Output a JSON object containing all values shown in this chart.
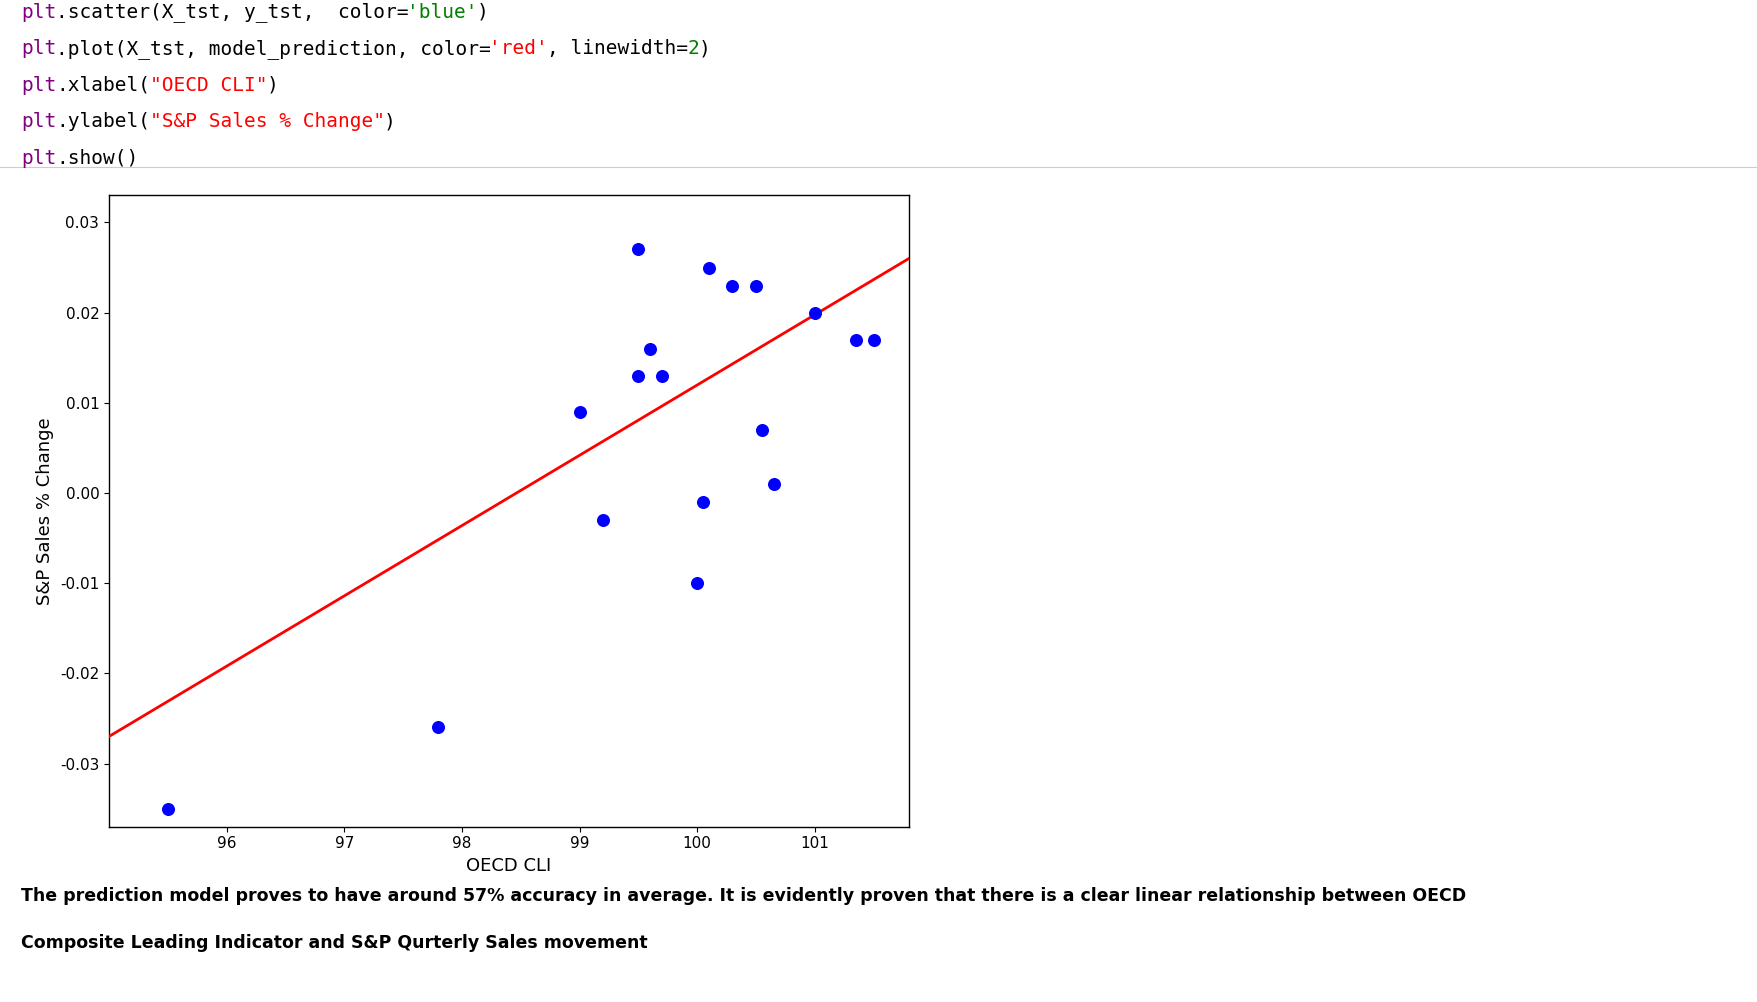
{
  "scatter_x": [
    95.5,
    97.8,
    99.0,
    99.2,
    99.5,
    99.5,
    99.6,
    99.7,
    100.0,
    100.05,
    100.1,
    100.3,
    100.5,
    100.55,
    100.65,
    101.0,
    101.35,
    101.5
  ],
  "scatter_y": [
    -0.035,
    -0.026,
    0.009,
    -0.003,
    0.027,
    0.013,
    0.016,
    0.013,
    -0.01,
    -0.001,
    0.025,
    0.023,
    0.023,
    0.007,
    0.001,
    0.02,
    0.017,
    0.017
  ],
  "line_x": [
    95.0,
    101.8
  ],
  "line_y": [
    -0.027,
    0.026
  ],
  "scatter_color": "blue",
  "line_color": "red",
  "line_width": 2,
  "xlabel": "OECD CLI",
  "ylabel": "S&P Sales % Change",
  "xlim": [
    95.0,
    101.8
  ],
  "ylim": [
    -0.037,
    0.033
  ],
  "xticks": [
    96,
    97,
    98,
    99,
    100,
    101
  ],
  "yticks": [
    -0.03,
    -0.02,
    -0.01,
    0.0,
    0.01,
    0.02,
    0.03
  ],
  "code_lines": [
    [
      {
        "t": "plt",
        "c": "#800080"
      },
      {
        "t": ".scatter(X_tst, y_tst,  color=",
        "c": "#000000"
      },
      {
        "t": "'blue'",
        "c": "#008000"
      },
      {
        "t": ")",
        "c": "#000000"
      }
    ],
    [
      {
        "t": "plt",
        "c": "#800080"
      },
      {
        "t": ".plot(X_tst, model_prediction, color=",
        "c": "#000000"
      },
      {
        "t": "'red'",
        "c": "#ff0000"
      },
      {
        "t": ", linewidth=",
        "c": "#000000"
      },
      {
        "t": "2",
        "c": "#008000"
      },
      {
        "t": ")",
        "c": "#000000"
      }
    ],
    [
      {
        "t": "plt",
        "c": "#800080"
      },
      {
        "t": ".xlabel(",
        "c": "#000000"
      },
      {
        "t": "\"OECD CLI\"",
        "c": "#ff0000"
      },
      {
        "t": ")",
        "c": "#000000"
      }
    ],
    [
      {
        "t": "plt",
        "c": "#800080"
      },
      {
        "t": ".ylabel(",
        "c": "#000000"
      },
      {
        "t": "\"S&P Sales % Change\"",
        "c": "#ff0000"
      },
      {
        "t": ")",
        "c": "#000000"
      }
    ],
    [
      {
        "t": "plt",
        "c": "#800080"
      },
      {
        "t": ".show()",
        "c": "#000000"
      }
    ]
  ],
  "code_bg": "#eeeeee",
  "plot_bg": "#ffffff",
  "code_fontsize": 14,
  "marker_size": 70,
  "footer_line1": "The prediction model proves to have around 57% accuracy in average. It is evidently proven that there is a clear linear relationship between OECD",
  "footer_line2": "Composite Leading Indicator and S&P Qurterly Sales movement"
}
